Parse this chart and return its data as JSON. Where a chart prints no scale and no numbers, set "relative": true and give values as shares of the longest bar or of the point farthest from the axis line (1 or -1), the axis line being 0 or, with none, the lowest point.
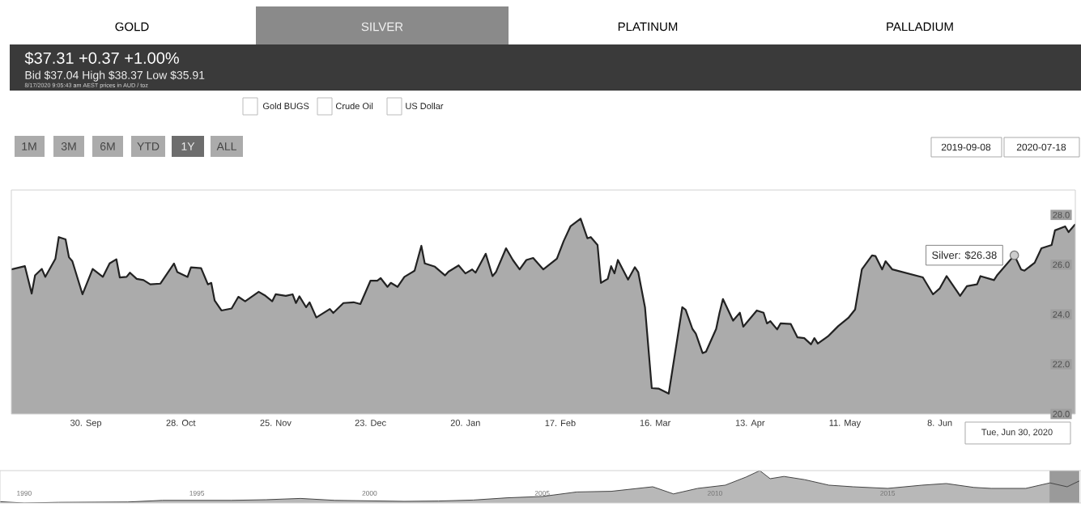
{
  "chart_data": [
    {
      "type": "area",
      "x": [
        "2019-09-08",
        "2019-09-12",
        "2019-09-14",
        "2019-09-15",
        "2019-09-17",
        "2019-09-18",
        "2019-09-21",
        "2019-09-22",
        "2019-09-24",
        "2019-09-25",
        "2019-09-26",
        "2019-09-29",
        "2019-10-02",
        "2019-10-05",
        "2019-10-07",
        "2019-10-09",
        "2019-10-10",
        "2019-10-12",
        "2019-10-13",
        "2019-10-15",
        "2019-10-17",
        "2019-10-19",
        "2019-10-22",
        "2019-10-26",
        "2019-10-27",
        "2019-10-30",
        "2019-10-31",
        "2019-11-03",
        "2019-11-05",
        "2019-11-06",
        "2019-11-07",
        "2019-11-09",
        "2019-11-12",
        "2019-11-14",
        "2019-11-16",
        "2019-11-20",
        "2019-11-22",
        "2019-11-24",
        "2019-11-25",
        "2019-11-28",
        "2019-11-30",
        "2019-12-01",
        "2019-12-02",
        "2019-12-04",
        "2019-12-05",
        "2019-12-07",
        "2019-12-11",
        "2019-12-12",
        "2019-12-15",
        "2019-12-18",
        "2019-12-20",
        "2019-12-23",
        "2019-12-25",
        "2019-12-26",
        "2019-12-28",
        "2019-12-29",
        "2019-12-31",
        "2020-01-02",
        "2020-01-05",
        "2020-01-07",
        "2020-01-08",
        "2020-01-11",
        "2020-01-14",
        "2020-01-15",
        "2020-01-18",
        "2020-01-20",
        "2020-01-22",
        "2020-01-23",
        "2020-01-26",
        "2020-01-28",
        "2020-01-29",
        "2020-02-01",
        "2020-02-03",
        "2020-02-05",
        "2020-02-07",
        "2020-02-09",
        "2020-02-12",
        "2020-02-16",
        "2020-02-18",
        "2020-02-20",
        "2020-02-23",
        "2020-02-25",
        "2020-02-26",
        "2020-02-28",
        "2020-02-29",
        "2020-03-02",
        "2020-03-03",
        "2020-03-04",
        "2020-03-05",
        "2020-03-08",
        "2020-03-10",
        "2020-03-11",
        "2020-03-13",
        "2020-03-15",
        "2020-03-17",
        "2020-03-20",
        "2020-03-21",
        "2020-03-24",
        "2020-03-25",
        "2020-03-27",
        "2020-03-28",
        "2020-03-30",
        "2020-03-31",
        "2020-04-03",
        "2020-04-04",
        "2020-04-05",
        "2020-04-08",
        "2020-04-10",
        "2020-04-11",
        "2020-04-15",
        "2020-04-17",
        "2020-04-18",
        "2020-04-19",
        "2020-04-21",
        "2020-04-22",
        "2020-04-25",
        "2020-04-27",
        "2020-04-29",
        "2020-05-01",
        "2020-05-02",
        "2020-05-03",
        "2020-05-06",
        "2020-05-09",
        "2020-05-12",
        "2020-05-14",
        "2020-05-16",
        "2020-05-19",
        "2020-05-20",
        "2020-05-22",
        "2020-05-23",
        "2020-05-25",
        "2020-06-03",
        "2020-06-06",
        "2020-06-08",
        "2020-06-10",
        "2020-06-14",
        "2020-06-16",
        "2020-06-19",
        "2020-06-20",
        "2020-06-24",
        "2020-06-25",
        "2020-06-30",
        "2020-07-02",
        "2020-07-03",
        "2020-07-06",
        "2020-07-08",
        "2020-07-11",
        "2020-07-12",
        "2020-07-15",
        "2020-07-16",
        "2020-07-18"
      ],
      "series": [
        {
          "color": "#222222",
          "values": [
            25.81,
            25.94,
            24.84,
            25.57,
            25.83,
            25.51,
            26.24,
            27.11,
            27.02,
            26.3,
            26.14,
            24.81,
            25.83,
            25.51,
            26.05,
            26.22,
            25.49,
            25.51,
            25.68,
            25.43,
            25.38,
            25.21,
            25.24,
            26.05,
            25.7,
            25.51,
            25.89,
            25.86,
            25.21,
            25.27,
            24.56,
            24.16,
            24.24,
            24.71,
            24.53,
            24.91,
            24.75,
            24.53,
            24.81,
            24.75,
            24.81,
            24.46,
            24.73,
            24.29,
            24.49,
            23.88,
            24.22,
            24.06,
            24.46,
            24.49,
            24.42,
            25.36,
            25.36,
            25.46,
            25.11,
            25.27,
            25.11,
            25.51,
            25.76,
            26.76,
            26.05,
            25.92,
            25.57,
            25.72,
            25.97,
            25.65,
            25.81,
            25.68,
            26.44,
            25.54,
            25.7,
            26.66,
            26.19,
            25.81,
            26.19,
            26.27,
            25.81,
            26.24,
            26.95,
            27.54,
            27.85,
            27.06,
            27.11,
            26.79,
            25.27,
            25.43,
            25.94,
            25.65,
            26.19,
            25.4,
            25.9,
            25.7,
            24.29,
            21.04,
            21.02,
            20.82,
            21.69,
            24.29,
            24.19,
            23.42,
            23.23,
            22.45,
            22.5,
            23.42,
            24.07,
            24.62,
            23.75,
            24.07,
            23.51,
            24.16,
            24.07,
            23.64,
            23.73,
            23.4,
            23.64,
            23.62,
            23.08,
            23.05,
            22.8,
            23.05,
            22.83,
            23.12,
            23.53,
            23.86,
            24.2,
            25.81,
            26.37,
            26.35,
            25.81,
            26.14,
            25.81,
            25.49,
            24.81,
            25.05,
            25.54,
            24.75,
            25.14,
            25.21,
            25.54,
            25.38,
            25.59,
            26.38,
            25.81,
            25.76,
            26.08,
            26.66,
            26.79,
            27.38,
            27.54,
            27.31,
            27.63
          ]
        }
      ],
      "xlim": [
        "2019-09-08",
        "2020-07-18"
      ],
      "xticks": [
        {
          "value": "2019-09-30",
          "label": "30. Sep"
        },
        {
          "value": "2019-10-28",
          "label": "28. Oct"
        },
        {
          "value": "2019-11-25",
          "label": "25. Nov"
        },
        {
          "value": "2019-12-23",
          "label": "23. Dec"
        },
        {
          "value": "2020-01-20",
          "label": "20. Jan"
        },
        {
          "value": "2020-02-17",
          "label": "17. Feb"
        },
        {
          "value": "2020-03-16",
          "label": "16. Mar"
        },
        {
          "value": "2020-04-13",
          "label": "13. Apr"
        },
        {
          "value": "2020-05-11",
          "label": "11. May"
        },
        {
          "value": "2020-06-08",
          "label": "8. Jun"
        }
      ],
      "ylim": [
        20,
        29
      ],
      "yticks": [
        {
          "value": 20,
          "label": "20.0"
        },
        {
          "value": 22,
          "label": "22.0"
        },
        {
          "value": 24,
          "label": "24.0"
        },
        {
          "value": 26,
          "label": "26.0"
        },
        {
          "value": 28,
          "label": "28.0"
        }
      ],
      "annotations": [
        "GOLD",
        "SILVER",
        "PLATINUM",
        "PALLADIUM",
        "$37.31 +0.37 +1.00%",
        "Bid $37.04 High $38.37 Low $35.91",
        "8/17/2020 9:05:43 am AEST prices in AUD / toz",
        "Gold BUGS",
        "Crude Oil",
        "US Dollar",
        "1M",
        "3M",
        "6M",
        "YTD",
        "1Y",
        "ALL",
        "2019-09-08",
        "2020-07-18",
        "Tue, Jun 30, 2020",
        {
          "text": "Silver: $26.38",
          "x": "2020-06-30",
          "y": 26.38
        }
      ]
    },
    {
      "type": "area",
      "relative": true,
      "x": [
        1989.3,
        1990,
        1991,
        1993,
        1994,
        1996,
        1997,
        1998,
        1999,
        2001,
        2002,
        2003,
        2004,
        2005,
        2006,
        2007,
        2008.2,
        2008.8,
        2009.5,
        2010.3,
        2010.9,
        2011.3,
        2011.6,
        2012,
        2012.6,
        2013.3,
        2014,
        2015,
        2016,
        2016.7,
        2017.5,
        2018,
        2019,
        2019.7,
        2020.2,
        2020.55
      ],
      "series": [
        {
          "color": "#444444",
          "values": [
            0.04,
            0.0,
            0.02,
            0.03,
            0.08,
            0.08,
            0.1,
            0.14,
            0.08,
            0.05,
            0.06,
            0.09,
            0.16,
            0.2,
            0.34,
            0.36,
            0.5,
            0.28,
            0.45,
            0.55,
            0.8,
            1.0,
            0.75,
            0.82,
            0.72,
            0.55,
            0.5,
            0.45,
            0.55,
            0.6,
            0.48,
            0.45,
            0.45,
            0.62,
            0.5,
            0.68
          ]
        }
      ],
      "xlim": [
        1989.3,
        2020.6
      ],
      "xticks": [
        1990,
        1995,
        2000,
        2005,
        2010,
        2015
      ],
      "bands": [
        {
          "axis": "x",
          "from": 2019.69,
          "to": 2020.55,
          "color": "#9a9a9a"
        }
      ]
    }
  ]
}
